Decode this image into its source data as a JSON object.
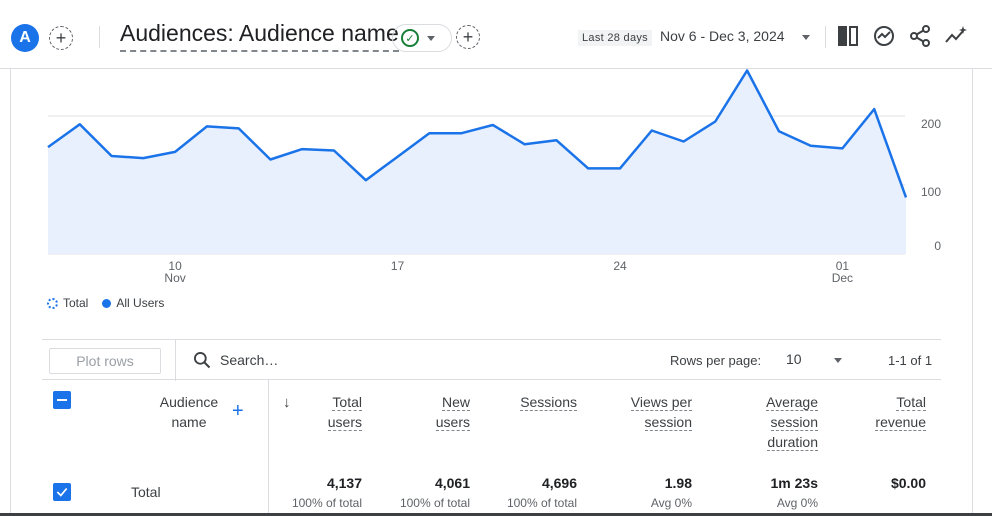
{
  "header": {
    "avatar_letter": "A",
    "add_comparison_symbol": "+",
    "title": "Audiences: Audience name",
    "add_symbol": "+",
    "date_label": "Last 28 days",
    "date_range": "Nov 6 - Dec 3, 2024",
    "status_icon": "check-circle-icon"
  },
  "chart_data": {
    "type": "area",
    "series": [
      {
        "name": "All Users",
        "values": [
          155,
          188,
          142,
          139,
          148,
          185,
          182,
          137,
          152,
          150,
          107,
          141,
          175,
          175,
          187,
          159,
          165,
          124,
          124,
          179,
          163,
          192,
          266,
          178,
          157,
          153,
          210,
          82
        ]
      }
    ],
    "x_tick_labels": [
      {
        "label": "10",
        "sub": "Nov"
      },
      {
        "label": "17",
        "sub": ""
      },
      {
        "label": "24",
        "sub": ""
      },
      {
        "label": "01",
        "sub": "Dec"
      }
    ],
    "y_tick_labels": [
      "200",
      "100",
      "0"
    ],
    "legend": [
      "Total",
      "All Users"
    ],
    "legend_placement": "bottom-left",
    "line_color": "#1a73e8",
    "fill_color": "#e8f0fe",
    "grid": true
  },
  "toolbar": {
    "plot_rows_label": "Plot rows",
    "search_placeholder": "Search…",
    "rows_per_page_label": "Rows per page:",
    "rows_per_page_value": "10",
    "pager_text": "1-1 of 1"
  },
  "table": {
    "audience_header": "Audience name",
    "sort_symbol": "↓",
    "add_dim_symbol": "+",
    "columns": [
      {
        "line1": "Total",
        "line2": "users",
        "line3": ""
      },
      {
        "line1": "New",
        "line2": "users",
        "line3": ""
      },
      {
        "line1": "Sessions",
        "line2": "",
        "line3": ""
      },
      {
        "line1": "Views per",
        "line2": "session",
        "line3": ""
      },
      {
        "line1": "Average",
        "line2": "session",
        "line3": "duration"
      },
      {
        "line1": "Total",
        "line2": "revenue",
        "line3": ""
      }
    ],
    "rows": [
      {
        "label": "Total",
        "values": [
          "4,137",
          "4,061",
          "4,696",
          "1.98",
          "1m 23s",
          "$0.00"
        ],
        "subs": [
          "100% of total",
          "100% of total",
          "100% of total",
          "Avg 0%",
          "Avg 0%",
          ""
        ]
      }
    ]
  }
}
